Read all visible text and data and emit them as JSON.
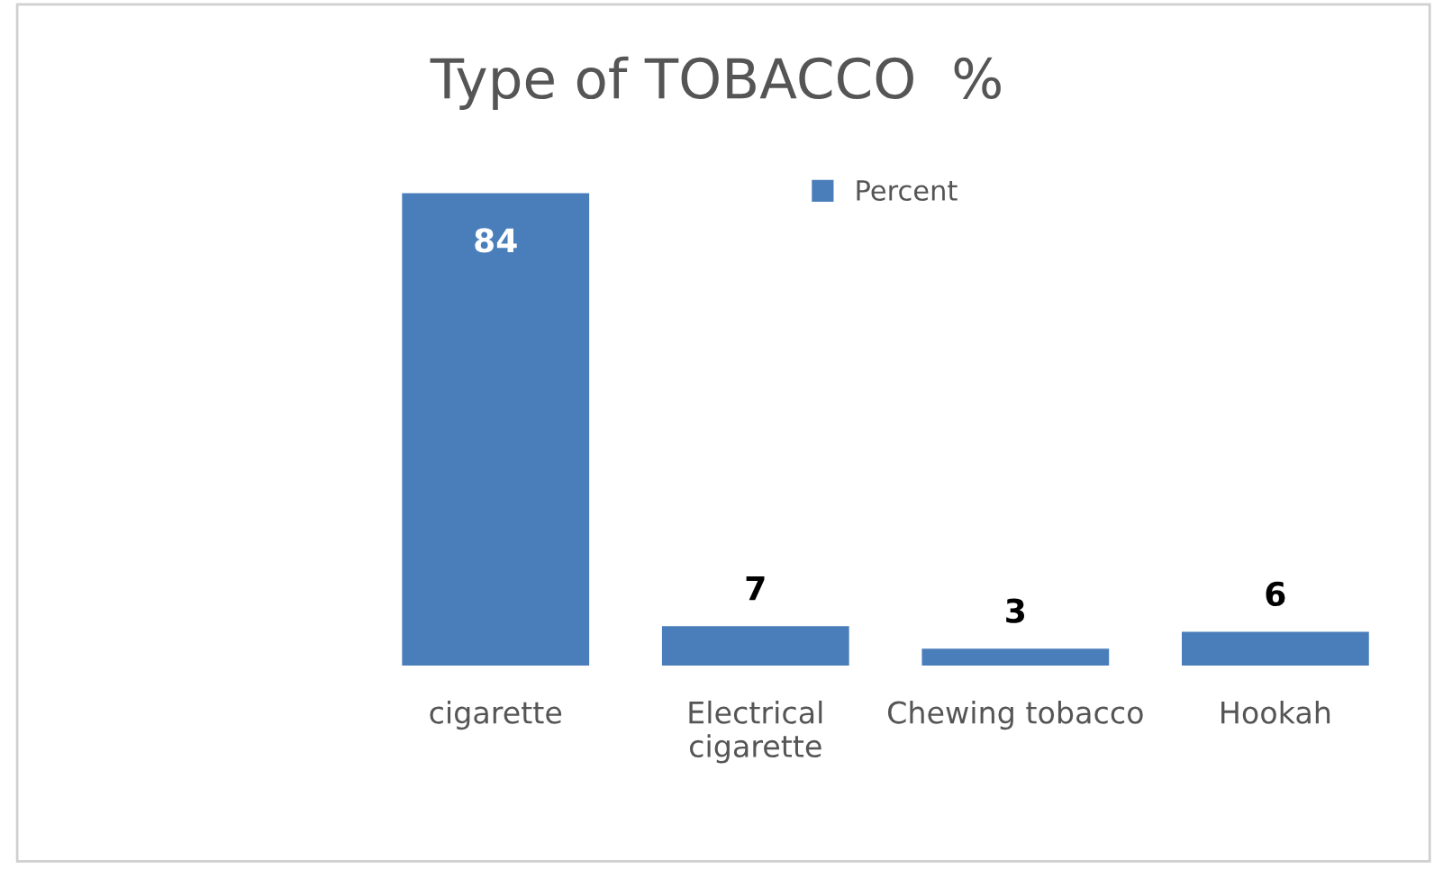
{
  "chart_data": {
    "type": "bar",
    "title": "Type of TOBACCO  %",
    "categories": [
      "cigarette",
      "Electrical cigarette",
      "Chewing tobacco",
      "Hookah"
    ],
    "series": [
      {
        "name": "Percent",
        "color": "#4a7ebb",
        "values": [
          84,
          7,
          3,
          6
        ]
      }
    ],
    "data_labels": true,
    "legend": "top",
    "grid": false
  }
}
